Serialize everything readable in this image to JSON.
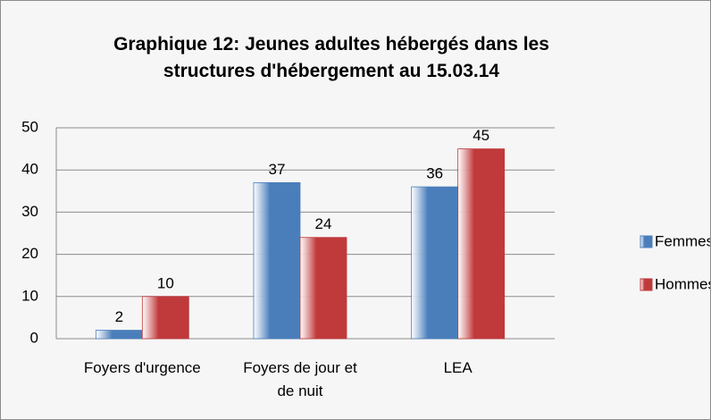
{
  "chart_data": {
    "type": "bar",
    "title": "Graphique 12: Jeunes adultes hébergés dans les structures d'hébergement au 15.03.14",
    "categories": [
      "Foyers d'urgence",
      "Foyers de jour et de nuit",
      "LEA"
    ],
    "series": [
      {
        "name": "Femmes",
        "color": "#4a7ebb",
        "values": [
          2,
          37,
          36
        ]
      },
      {
        "name": "Hommes",
        "color": "#c0393b",
        "values": [
          10,
          24,
          45
        ]
      }
    ],
    "ylim": [
      0,
      50
    ],
    "yticks": [
      0,
      10,
      20,
      30,
      40,
      50
    ],
    "grid": true,
    "legend": "right"
  }
}
